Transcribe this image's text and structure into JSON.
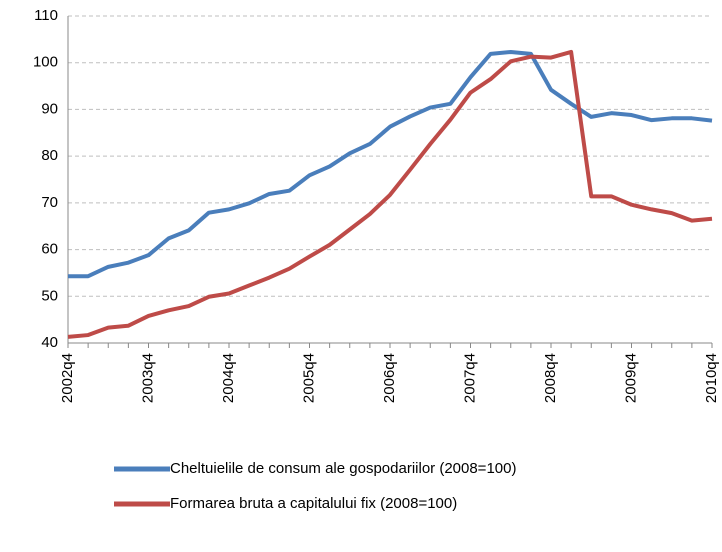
{
  "chart_data": {
    "type": "line",
    "categories": [
      "2002q4",
      null,
      null,
      null,
      "2003q4",
      null,
      null,
      null,
      "2004q4",
      null,
      null,
      null,
      "2005q4",
      null,
      null,
      null,
      "2006q4",
      null,
      null,
      null,
      "2007q4",
      null,
      null,
      null,
      "2008q4",
      null,
      null,
      null,
      "2009q4",
      null,
      null,
      null,
      "2010q4"
    ],
    "series": [
      {
        "name": "Cheltuielile de consum ale gospodariilor (2008=100)",
        "color": "#4a7ebb",
        "values": [
          54.3,
          54.3,
          56.3,
          57.2,
          58.8,
          62.4,
          64.1,
          67.9,
          68.6,
          69.9,
          71.9,
          72.6,
          75.9,
          77.8,
          80.6,
          82.6,
          86.3,
          88.5,
          90.4,
          91.2,
          96.9,
          101.9,
          102.3,
          101.9,
          94.2,
          91.2,
          88.4,
          89.2,
          88.8,
          87.7,
          88.1,
          88.1,
          87.6
        ]
      },
      {
        "name": "Formarea bruta a capitalului fix (2008=100)",
        "color": "#be4b48",
        "values": [
          41.3,
          41.7,
          43.3,
          43.7,
          45.8,
          47.0,
          47.9,
          49.9,
          50.6,
          52.3,
          54.0,
          55.9,
          58.5,
          61.0,
          64.3,
          67.6,
          71.7,
          77.1,
          82.6,
          87.8,
          93.6,
          96.5,
          100.3,
          101.3,
          101.1,
          102.3,
          71.4,
          71.4,
          69.6,
          68.6,
          67.8,
          66.2,
          66.6
        ]
      }
    ],
    "ylim": [
      40,
      110
    ],
    "yticks": [
      40,
      50,
      60,
      70,
      80,
      90,
      100,
      110
    ],
    "grid": true
  }
}
